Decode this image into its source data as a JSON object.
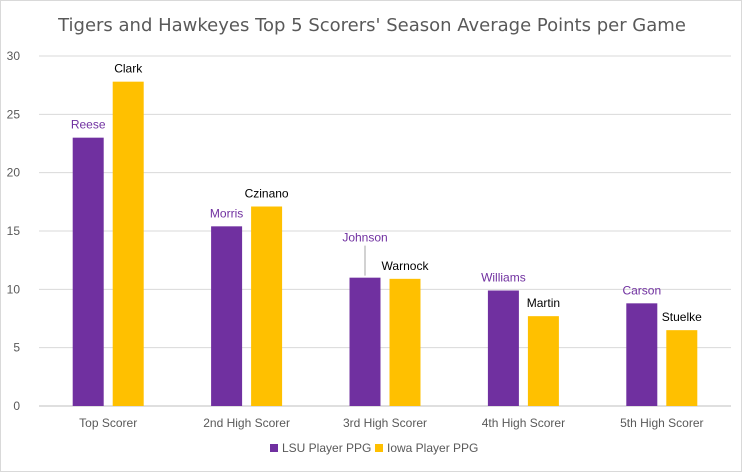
{
  "chart_data": {
    "type": "bar",
    "title": "Tigers and Hawkeyes Top 5 Scorers' Season Average Points per Game",
    "categories": [
      "Top Scorer",
      "2nd High Scorer",
      "3rd High Scorer",
      "4th High Scorer",
      "5th High Scorer"
    ],
    "series": [
      {
        "name": "LSU Player PPG",
        "color": "#7030A0",
        "label_color": "#7030A0",
        "values": [
          23.0,
          15.4,
          11.0,
          9.9,
          8.8
        ],
        "labels": [
          "Reese",
          "Morris",
          "Johnson",
          "Williams",
          "Carson"
        ]
      },
      {
        "name": "Iowa Player PPG",
        "color": "#FFC000",
        "label_color": "#000000",
        "values": [
          27.8,
          17.1,
          10.9,
          7.7,
          6.5
        ],
        "labels": [
          "Clark",
          "Czinano",
          "Warnock",
          "Martin",
          "Stuelke"
        ]
      }
    ],
    "ylim": [
      0,
      30
    ],
    "yticks": [
      0,
      5,
      10,
      15,
      20,
      25,
      30
    ],
    "grid": true,
    "legend_position": "bottom"
  }
}
